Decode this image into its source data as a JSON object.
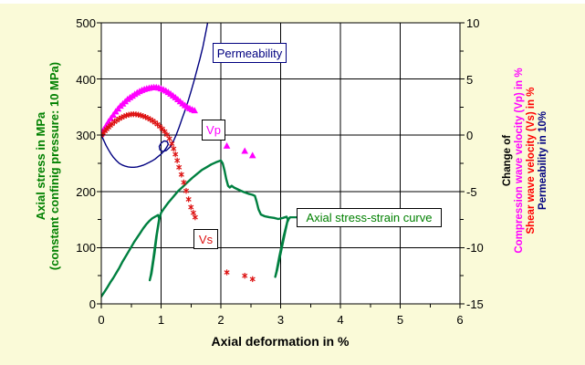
{
  "figure": {
    "background": "#FAFAD8",
    "plot_background": "#FFFFFF",
    "frame_color": "#000000",
    "grid_color": "#000000"
  },
  "chart_data": {
    "type": "line",
    "grid": "on",
    "x_axis": {
      "label": "Axial deformation in %",
      "range": [
        0,
        6
      ],
      "tick_values": [
        0,
        1,
        2,
        3,
        4,
        5,
        6
      ],
      "tick_labels": [
        "0",
        "1",
        "2",
        "3",
        "4",
        "5",
        "6"
      ],
      "minor_step": 0.5
    },
    "y_axis_left": {
      "title_line1": "Axial stress in MPa",
      "title_line2": "(constant confinig pressure: 10 MPa)",
      "title_color": "#008000",
      "range": [
        0,
        500
      ],
      "tick_values": [
        0,
        100,
        200,
        300,
        400,
        500
      ],
      "tick_labels": [
        "0",
        "100",
        "200",
        "300",
        "400",
        "500"
      ],
      "minor_step": 50
    },
    "y_axis_right": {
      "title_lines": [
        {
          "text": "Change of",
          "color": "#000000"
        },
        {
          "text": "Compression wave velocity (Vp) in %",
          "color": "#FF00FF"
        },
        {
          "text": "Shear wave velocity (Vs) in %",
          "color": "#FF0000"
        },
        {
          "text": "Permeability in 10%",
          "color": "#000080"
        }
      ],
      "range": [
        -15,
        10
      ],
      "tick_values": [
        10,
        5,
        0,
        -5,
        -10,
        -15
      ],
      "tick_labels": [
        "10",
        "5",
        "0",
        "-5",
        "-10",
        "-15"
      ],
      "minor_step": 2.5
    },
    "series": [
      {
        "id": "stress_strain",
        "name": "Axial stress-strain curve",
        "axis": "left",
        "style": "line",
        "color": "#008040",
        "width": 2.4,
        "points": [
          [
            0,
            13
          ],
          [
            0.05,
            21
          ],
          [
            0.1,
            29
          ],
          [
            0.15,
            38
          ],
          [
            0.2,
            46
          ],
          [
            0.25,
            55
          ],
          [
            0.3,
            64
          ],
          [
            0.35,
            74
          ],
          [
            0.4,
            83
          ],
          [
            0.45,
            92
          ],
          [
            0.5,
            101
          ],
          [
            0.55,
            110
          ],
          [
            0.6,
            118
          ],
          [
            0.65,
            126
          ],
          [
            0.7,
            134
          ],
          [
            0.75,
            141
          ],
          [
            0.8,
            147
          ],
          [
            0.85,
            152
          ],
          [
            0.9,
            155
          ],
          [
            0.95,
            158
          ],
          [
            0.97,
            152
          ],
          [
            0.92,
            120
          ],
          [
            0.87,
            80
          ],
          [
            0.83,
            52
          ],
          [
            0.81,
            42
          ],
          [
            0.84,
            54
          ],
          [
            0.89,
            90
          ],
          [
            0.93,
            124
          ],
          [
            0.97,
            150
          ],
          [
            1.0,
            162
          ],
          [
            1.05,
            170
          ],
          [
            1.12,
            180
          ],
          [
            1.2,
            190
          ],
          [
            1.28,
            200
          ],
          [
            1.36,
            208
          ],
          [
            1.44,
            216
          ],
          [
            1.52,
            224
          ],
          [
            1.6,
            231
          ],
          [
            1.68,
            238
          ],
          [
            1.76,
            243
          ],
          [
            1.84,
            248
          ],
          [
            1.92,
            252
          ],
          [
            2.0,
            255
          ],
          [
            2.03,
            250
          ],
          [
            2.06,
            238
          ],
          [
            2.09,
            222
          ],
          [
            2.12,
            210
          ],
          [
            2.15,
            207
          ],
          [
            2.18,
            210
          ],
          [
            2.22,
            207
          ],
          [
            2.3,
            203
          ],
          [
            2.38,
            199
          ],
          [
            2.46,
            196
          ],
          [
            2.53,
            194
          ],
          [
            2.57,
            192
          ],
          [
            2.6,
            181
          ],
          [
            2.63,
            168
          ],
          [
            2.67,
            159
          ],
          [
            2.73,
            156
          ],
          [
            2.81,
            154
          ],
          [
            2.89,
            153
          ],
          [
            2.96,
            151
          ],
          [
            3.04,
            153
          ],
          [
            3.1,
            155
          ],
          [
            3.12,
            150
          ],
          [
            3.05,
            120
          ],
          [
            2.98,
            85
          ],
          [
            2.93,
            57
          ],
          [
            2.91,
            48
          ],
          [
            2.94,
            60
          ],
          [
            3.0,
            90
          ],
          [
            3.06,
            120
          ],
          [
            3.11,
            145
          ],
          [
            3.14,
            152
          ],
          [
            3.16,
            154
          ]
        ]
      },
      {
        "id": "permeability",
        "name": "Permeability",
        "axis": "right",
        "style": "line",
        "color": "#000080",
        "width": 1.4,
        "points": [
          [
            0,
            0
          ],
          [
            0.04,
            -0.45
          ],
          [
            0.08,
            -0.9
          ],
          [
            0.12,
            -1.3
          ],
          [
            0.16,
            -1.65
          ],
          [
            0.2,
            -1.95
          ],
          [
            0.25,
            -2.25
          ],
          [
            0.3,
            -2.5
          ],
          [
            0.35,
            -2.65
          ],
          [
            0.4,
            -2.75
          ],
          [
            0.45,
            -2.82
          ],
          [
            0.5,
            -2.85
          ],
          [
            0.55,
            -2.85
          ],
          [
            0.6,
            -2.82
          ],
          [
            0.65,
            -2.75
          ],
          [
            0.7,
            -2.67
          ],
          [
            0.75,
            -2.55
          ],
          [
            0.8,
            -2.42
          ],
          [
            0.85,
            -2.28
          ],
          [
            0.9,
            -2.12
          ],
          [
            0.95,
            -1.9
          ],
          [
            1.0,
            -1.68
          ],
          [
            1.05,
            -1.4
          ],
          [
            1.09,
            -1.1
          ],
          [
            1.12,
            -0.8
          ],
          [
            1.1,
            -0.55
          ],
          [
            1.05,
            -0.5
          ],
          [
            1.0,
            -0.7
          ],
          [
            0.97,
            -1.0
          ],
          [
            0.98,
            -1.3
          ],
          [
            1.03,
            -1.45
          ],
          [
            1.09,
            -1.35
          ],
          [
            1.15,
            -1.05
          ],
          [
            1.2,
            -0.6
          ],
          [
            1.25,
            0.0
          ],
          [
            1.3,
            0.7
          ],
          [
            1.35,
            1.45
          ],
          [
            1.4,
            2.2
          ],
          [
            1.45,
            3.0
          ],
          [
            1.5,
            3.9
          ],
          [
            1.55,
            4.8
          ],
          [
            1.6,
            5.8
          ],
          [
            1.65,
            6.8
          ],
          [
            1.7,
            7.9
          ],
          [
            1.75,
            9.2
          ],
          [
            1.79,
            10.3
          ]
        ]
      },
      {
        "id": "vp",
        "name": "Vp",
        "axis": "right",
        "style": "scatter",
        "marker": "triangle",
        "color": "#FF00FF",
        "points": [
          [
            0,
            0.15
          ],
          [
            0.04,
            0.5
          ],
          [
            0.08,
            0.85
          ],
          [
            0.12,
            1.2
          ],
          [
            0.16,
            1.5
          ],
          [
            0.2,
            1.8
          ],
          [
            0.24,
            2.1
          ],
          [
            0.28,
            2.35
          ],
          [
            0.32,
            2.6
          ],
          [
            0.36,
            2.8
          ],
          [
            0.4,
            3.0
          ],
          [
            0.44,
            3.2
          ],
          [
            0.48,
            3.35
          ],
          [
            0.52,
            3.5
          ],
          [
            0.56,
            3.65
          ],
          [
            0.6,
            3.78
          ],
          [
            0.64,
            3.9
          ],
          [
            0.68,
            4.0
          ],
          [
            0.72,
            4.08
          ],
          [
            0.76,
            4.15
          ],
          [
            0.8,
            4.2
          ],
          [
            0.84,
            4.24
          ],
          [
            0.88,
            4.26
          ],
          [
            0.92,
            4.26
          ],
          [
            0.96,
            4.22
          ],
          [
            1.0,
            4.15
          ],
          [
            1.04,
            4.05
          ],
          [
            1.08,
            3.95
          ],
          [
            1.12,
            3.82
          ],
          [
            1.16,
            3.68
          ],
          [
            1.2,
            3.52
          ],
          [
            1.24,
            3.35
          ],
          [
            1.28,
            3.18
          ],
          [
            1.32,
            3.0
          ],
          [
            1.36,
            2.82
          ],
          [
            1.4,
            2.65
          ],
          [
            1.44,
            2.5
          ],
          [
            1.48,
            2.38
          ],
          [
            1.52,
            2.28
          ],
          [
            1.56,
            2.2
          ],
          [
            2.1,
            -0.95
          ],
          [
            2.4,
            -1.4
          ],
          [
            2.53,
            -1.8
          ]
        ]
      },
      {
        "id": "vs",
        "name": "Vs",
        "axis": "right",
        "style": "scatter",
        "marker": "asterisk",
        "color": "#DD1111",
        "points": [
          [
            0,
            0
          ],
          [
            0.03,
            0.18
          ],
          [
            0.06,
            0.36
          ],
          [
            0.09,
            0.54
          ],
          [
            0.12,
            0.7
          ],
          [
            0.15,
            0.86
          ],
          [
            0.18,
            1.0
          ],
          [
            0.22,
            1.18
          ],
          [
            0.26,
            1.33
          ],
          [
            0.3,
            1.47
          ],
          [
            0.34,
            1.58
          ],
          [
            0.38,
            1.68
          ],
          [
            0.42,
            1.76
          ],
          [
            0.46,
            1.82
          ],
          [
            0.5,
            1.86
          ],
          [
            0.54,
            1.87
          ],
          [
            0.58,
            1.86
          ],
          [
            0.62,
            1.82
          ],
          [
            0.66,
            1.77
          ],
          [
            0.7,
            1.7
          ],
          [
            0.74,
            1.62
          ],
          [
            0.78,
            1.52
          ],
          [
            0.82,
            1.41
          ],
          [
            0.86,
            1.28
          ],
          [
            0.9,
            1.13
          ],
          [
            0.94,
            0.97
          ],
          [
            0.98,
            0.78
          ],
          [
            1.02,
            0.57
          ],
          [
            1.06,
            0.33
          ],
          [
            1.1,
            0.05
          ],
          [
            1.14,
            -0.3
          ],
          [
            1.18,
            -0.75
          ],
          [
            1.21,
            -1.2
          ],
          [
            1.24,
            -1.7
          ],
          [
            1.27,
            -2.25
          ],
          [
            1.3,
            -2.85
          ],
          [
            1.34,
            -3.5
          ],
          [
            1.38,
            -4.2
          ],
          [
            1.42,
            -4.95
          ],
          [
            1.46,
            -5.7
          ],
          [
            1.5,
            -6.4
          ],
          [
            1.54,
            -6.9
          ],
          [
            1.57,
            -7.3
          ],
          [
            2.1,
            -12.2
          ],
          [
            2.4,
            -12.5
          ],
          [
            2.53,
            -12.8
          ]
        ]
      }
    ],
    "annotations": [
      {
        "id": "permeability-label",
        "text": "Permeability",
        "color": "#000080",
        "border": "#000080"
      },
      {
        "id": "vp-label",
        "text": "Vp",
        "color": "#FF00FF",
        "border": "#000000"
      },
      {
        "id": "vs-label",
        "text": "Vs",
        "color": "#DD1111",
        "border": "#000000"
      },
      {
        "id": "stress-strain-label",
        "text": "Axial stress-strain curve",
        "color": "#008000",
        "border": "#000000",
        "leader_from_data_point": [
          3.16,
          154
        ],
        "leader_color": "#008040"
      }
    ]
  }
}
